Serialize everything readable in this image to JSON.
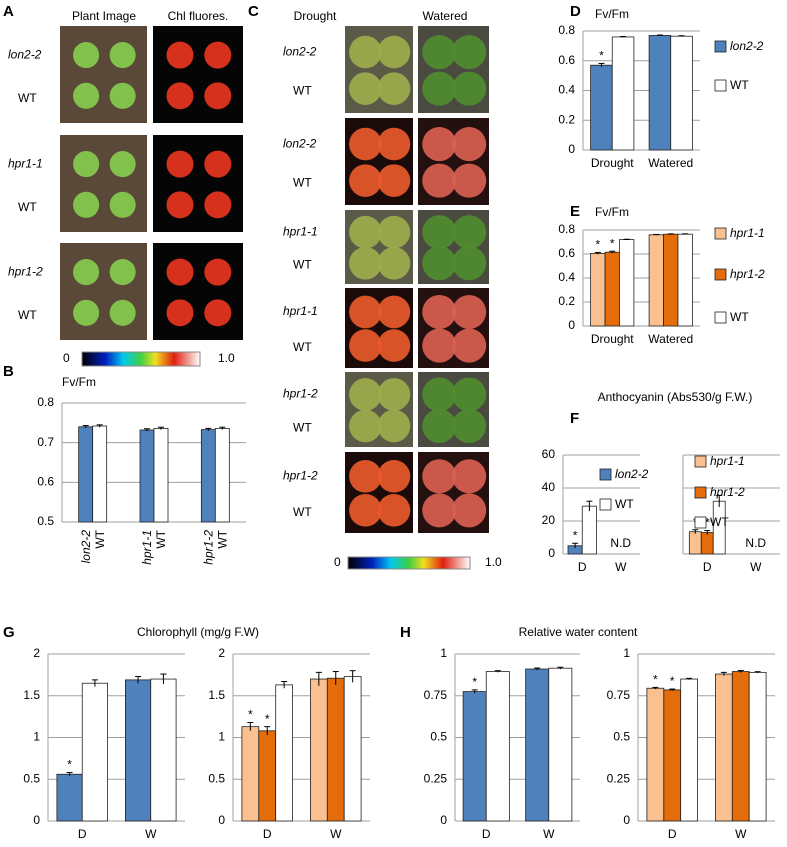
{
  "photos": {
    "A": {
      "letter": "A",
      "headers": [
        "Plant Image",
        "Chl fluores."
      ],
      "rows": [
        [
          "lon2-2",
          "WT"
        ],
        [
          "hpr1-1",
          "WT"
        ],
        [
          "hpr1-2",
          "WT"
        ]
      ],
      "scale": [
        "0",
        "1.0"
      ]
    },
    "C": {
      "letter": "C",
      "headers": [
        "Drought",
        "Watered"
      ],
      "rows": [
        [
          "lon2-2",
          "WT"
        ],
        [
          "lon2-2",
          "WT"
        ],
        [
          "hpr1-1",
          "WT"
        ],
        [
          "hpr1-1",
          "WT"
        ],
        [
          "hpr1-2",
          "WT"
        ],
        [
          "hpr1-2",
          "WT"
        ]
      ],
      "scale": [
        "0",
        "1.0"
      ]
    }
  },
  "chart_data": [
    {
      "type": "bar",
      "panel": "B",
      "ylabel": "Fv/Fm",
      "categories": [
        "lon2-2",
        "WT",
        "hpr1-1",
        "WT",
        "hpr1-2",
        "WT"
      ],
      "values": [
        0.74,
        0.742,
        0.732,
        0.736,
        0.733,
        0.736
      ],
      "errors": [
        0.003,
        0.003,
        0.003,
        0.003,
        0.003,
        0.003
      ],
      "colors": [
        "#4f81bd",
        "#ffffff",
        "#4f81bd",
        "#ffffff",
        "#4f81bd",
        "#ffffff"
      ],
      "ylim": [
        0.5,
        0.8
      ],
      "yticks": [
        0.5,
        0.6,
        0.7,
        0.8
      ],
      "grid": true
    },
    {
      "type": "grouped_bar",
      "panel": "D",
      "ylabel": "Fv/Fm",
      "categories": [
        "Drought",
        "Watered"
      ],
      "series": [
        {
          "name": "lon2-2",
          "italic": true,
          "color": "#4f81bd",
          "values": [
            0.57,
            0.77
          ],
          "errors": [
            0.012,
            0.003
          ],
          "marks": [
            "*",
            null
          ]
        },
        {
          "name": "WT",
          "italic": false,
          "color": "#ffffff",
          "values": [
            0.76,
            0.765
          ],
          "errors": [
            0.003,
            0.003
          ],
          "marks": [
            null,
            null
          ]
        }
      ],
      "ylim": [
        0,
        0.8
      ],
      "yticks": [
        0,
        0.2,
        0.4,
        0.6,
        0.8
      ],
      "grid": true,
      "legend": "right"
    },
    {
      "type": "grouped_bar",
      "panel": "E",
      "ylabel": "Fv/Fm",
      "categories": [
        "Drought",
        "Watered"
      ],
      "series": [
        {
          "name": "hpr1-1",
          "italic": true,
          "color": "#fac090",
          "values": [
            0.605,
            0.76
          ],
          "errors": [
            0.008,
            0.003
          ],
          "marks": [
            "*",
            null
          ]
        },
        {
          "name": "hpr1-2",
          "italic": true,
          "color": "#e46c0a",
          "values": [
            0.615,
            0.765
          ],
          "errors": [
            0.008,
            0.003
          ],
          "marks": [
            "*",
            null
          ]
        },
        {
          "name": "WT",
          "italic": false,
          "color": "#ffffff",
          "values": [
            0.72,
            0.765
          ],
          "errors": [
            0.003,
            0.003
          ],
          "marks": [
            null,
            null
          ]
        }
      ],
      "ylim": [
        0,
        0.8
      ],
      "yticks": [
        0,
        0.2,
        0.4,
        0.6,
        0.8
      ],
      "grid": true,
      "legend": "right"
    },
    {
      "type": "grouped_bar",
      "panel": "F",
      "title": "Anthocyanin (Abs530/g F.W.)",
      "categories": [
        "D",
        "W"
      ],
      "missing_label": "N.D",
      "series": [
        {
          "name": "lon2-2",
          "italic": true,
          "color": "#4f81bd",
          "values": [
            5,
            null
          ],
          "errors": [
            1.5,
            null
          ],
          "marks": [
            "*",
            null
          ]
        },
        {
          "name": "WT",
          "italic": false,
          "color": "#ffffff",
          "values": [
            29,
            null
          ],
          "errors": [
            3,
            null
          ],
          "marks": [
            null,
            null
          ]
        }
      ],
      "ylim": [
        0,
        60
      ],
      "yticks": [
        0,
        20,
        40,
        60
      ],
      "grid": true,
      "legend": "inside"
    },
    {
      "type": "grouped_bar",
      "categories": [
        "D",
        "W"
      ],
      "missing_label": "N.D",
      "ytick_labels": false,
      "series": [
        {
          "name": "hpr1-1",
          "italic": true,
          "color": "#fac090",
          "values": [
            13.5,
            null
          ],
          "errors": [
            1.2,
            null
          ],
          "marks": [
            "*",
            null
          ]
        },
        {
          "name": "hpr1-2",
          "italic": true,
          "color": "#e46c0a",
          "values": [
            13,
            null
          ],
          "errors": [
            1.2,
            null
          ],
          "marks": [
            "*",
            null
          ]
        },
        {
          "name": "WT",
          "italic": false,
          "color": "#ffffff",
          "values": [
            32,
            null
          ],
          "errors": [
            3.5,
            null
          ],
          "marks": [
            null,
            null
          ]
        }
      ],
      "ylim": [
        0,
        60
      ],
      "yticks": [
        0,
        20,
        40,
        60
      ],
      "grid": true,
      "legend": "inside"
    },
    {
      "type": "grouped_bar",
      "panel": "G",
      "title": "Chlorophyll (mg/g F.W)",
      "categories": [
        "D",
        "W"
      ],
      "series": [
        {
          "name": "lon2-2",
          "color": "#4f81bd",
          "values": [
            0.56,
            1.69
          ],
          "errors": [
            0.02,
            0.04
          ],
          "marks": [
            "*",
            null
          ]
        },
        {
          "name": "WT",
          "color": "#ffffff",
          "values": [
            1.65,
            1.7
          ],
          "errors": [
            0.04,
            0.06
          ],
          "marks": [
            null,
            null
          ]
        }
      ],
      "ylim": [
        0,
        2
      ],
      "yticks": [
        0,
        0.5,
        1,
        1.5,
        2
      ],
      "grid": true
    },
    {
      "type": "grouped_bar",
      "categories": [
        "D",
        "W"
      ],
      "series": [
        {
          "name": "hpr1-1",
          "color": "#fac090",
          "values": [
            1.13,
            1.7
          ],
          "errors": [
            0.05,
            0.08
          ],
          "marks": [
            "*",
            null
          ]
        },
        {
          "name": "hpr1-2",
          "color": "#e46c0a",
          "values": [
            1.08,
            1.71
          ],
          "errors": [
            0.05,
            0.08
          ],
          "marks": [
            "*",
            null
          ]
        },
        {
          "name": "WT",
          "color": "#ffffff",
          "values": [
            1.63,
            1.73
          ],
          "errors": [
            0.04,
            0.07
          ],
          "marks": [
            null,
            null
          ]
        }
      ],
      "ylim": [
        0,
        2
      ],
      "yticks": [
        0,
        0.5,
        1,
        1.5,
        2
      ],
      "grid": true
    },
    {
      "type": "grouped_bar",
      "panel": "H",
      "title": "Relative water content",
      "categories": [
        "D",
        "W"
      ],
      "series": [
        {
          "name": "lon2-2",
          "color": "#4f81bd",
          "values": [
            0.775,
            0.91
          ],
          "errors": [
            0.01,
            0.006
          ],
          "marks": [
            "*",
            null
          ]
        },
        {
          "name": "WT",
          "color": "#ffffff",
          "values": [
            0.895,
            0.915
          ],
          "errors": [
            0.005,
            0.006
          ],
          "marks": [
            null,
            null
          ]
        }
      ],
      "ylim": [
        0,
        1
      ],
      "yticks": [
        0,
        0.25,
        0.5,
        0.75,
        1
      ],
      "grid": true
    },
    {
      "type": "grouped_bar",
      "categories": [
        "D",
        "W"
      ],
      "series": [
        {
          "name": "hpr1-1",
          "color": "#fac090",
          "values": [
            0.795,
            0.88
          ],
          "errors": [
            0.005,
            0.01
          ],
          "marks": [
            "*",
            null
          ]
        },
        {
          "name": "hpr1-2",
          "color": "#e46c0a",
          "values": [
            0.785,
            0.895
          ],
          "errors": [
            0.005,
            0.006
          ],
          "marks": [
            "*",
            null
          ]
        },
        {
          "name": "WT",
          "color": "#ffffff",
          "values": [
            0.85,
            0.89
          ],
          "errors": [
            0.004,
            0.004
          ],
          "marks": [
            null,
            null
          ]
        }
      ],
      "ylim": [
        0,
        1
      ],
      "yticks": [
        0,
        0.25,
        0.5,
        0.75,
        1
      ],
      "grid": true
    }
  ]
}
